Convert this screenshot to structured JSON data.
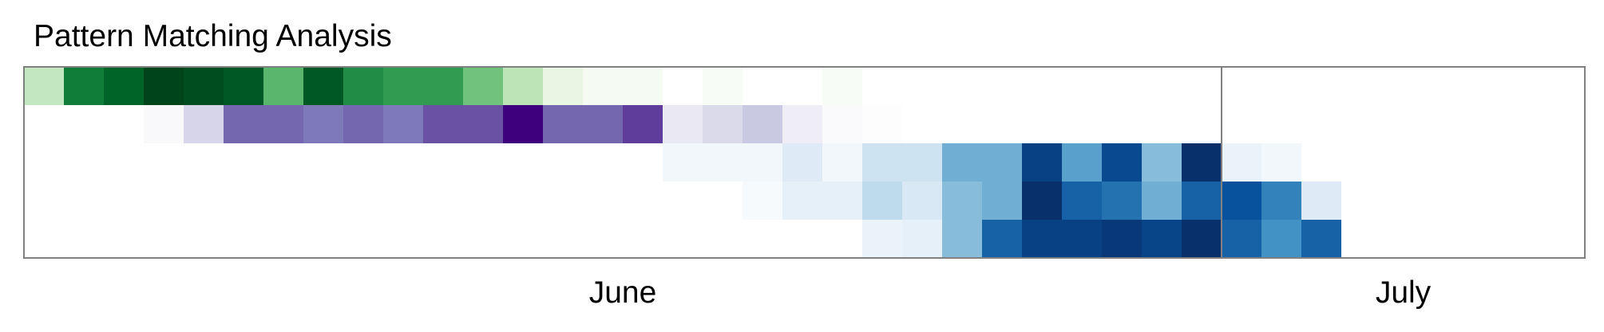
{
  "chart_data": {
    "type": "heatmap",
    "title": "Pattern Matching Analysis",
    "x": {
      "start_date": "2024-06-01",
      "days": 39
    },
    "month_labels": [
      {
        "text": "June",
        "month": "2024-06"
      },
      {
        "text": "July",
        "month": "2024-07"
      }
    ],
    "series": [
      {
        "colormap": "green",
        "values": [
          0.3,
          0.75,
          0.85,
          1.0,
          0.95,
          0.9,
          0.55,
          0.9,
          0.7,
          0.65,
          0.65,
          0.5,
          0.32,
          0.18,
          0.08,
          0.08,
          0.0,
          0.06,
          0.0,
          0.0,
          0.06,
          0.0,
          0.0,
          0.0,
          0.0,
          0.0,
          0.0,
          0.0,
          0.0,
          0.0,
          0.0,
          0.0,
          0.0,
          0.0,
          0.0,
          0.0,
          0.0,
          0.0,
          0.0
        ]
      },
      {
        "colormap": "purple",
        "values": [
          0.0,
          0.0,
          0.0,
          0.08,
          0.3,
          0.7,
          0.7,
          0.62,
          0.7,
          0.62,
          0.8,
          0.8,
          1.0,
          0.7,
          0.7,
          0.85,
          0.22,
          0.28,
          0.35,
          0.2,
          0.06,
          0.02,
          0.0,
          0.0,
          0.0,
          0.0,
          0.0,
          0.0,
          0.0,
          0.0,
          0.0,
          0.0,
          0.0,
          0.0,
          0.0,
          0.0,
          0.0,
          0.0,
          0.0
        ]
      },
      {
        "colormap": "blue",
        "values": [
          0.0,
          0.0,
          0.0,
          0.0,
          0.0,
          0.0,
          0.0,
          0.0,
          0.0,
          0.0,
          0.0,
          0.0,
          0.0,
          0.0,
          0.0,
          0.0,
          0.08,
          0.08,
          0.08,
          0.2,
          0.08,
          0.25,
          0.25,
          0.5,
          0.5,
          0.9,
          0.55,
          0.85,
          0.45,
          1.0,
          0.12,
          0.08,
          0.0,
          0.0,
          0.0,
          0.0,
          0.0,
          0.0,
          0.0
        ]
      },
      {
        "colormap": "blue",
        "values": [
          0.0,
          0.0,
          0.0,
          0.0,
          0.0,
          0.0,
          0.0,
          0.0,
          0.0,
          0.0,
          0.0,
          0.0,
          0.0,
          0.0,
          0.0,
          0.0,
          0.0,
          0.0,
          0.05,
          0.15,
          0.15,
          0.3,
          0.22,
          0.45,
          0.5,
          1.0,
          0.75,
          0.7,
          0.5,
          0.75,
          0.8,
          0.65,
          0.2,
          0.0,
          0.0,
          0.0,
          0.0,
          0.0,
          0.0
        ]
      },
      {
        "colormap": "blue",
        "values": [
          0.0,
          0.0,
          0.0,
          0.0,
          0.0,
          0.0,
          0.0,
          0.0,
          0.0,
          0.0,
          0.0,
          0.0,
          0.0,
          0.0,
          0.0,
          0.0,
          0.0,
          0.0,
          0.0,
          0.0,
          0.0,
          0.12,
          0.15,
          0.45,
          0.75,
          0.9,
          0.9,
          0.95,
          0.88,
          1.0,
          0.75,
          0.6,
          0.75,
          0.0,
          0.0,
          0.0,
          0.0,
          0.0,
          0.0
        ]
      }
    ],
    "colormaps": {
      "green": [
        "#ffffff",
        "#e5f5e0",
        "#a1d99b",
        "#41ab5d",
        "#006d2c",
        "#00441b"
      ],
      "purple": [
        "#ffffff",
        "#efedf5",
        "#bcbddc",
        "#807dba",
        "#6a51a3",
        "#3f007d"
      ],
      "blue": [
        "#ffffff",
        "#deebf7",
        "#9ecae1",
        "#4292c6",
        "#08519c",
        "#08306b"
      ]
    },
    "frame_color": "#808080",
    "grid": false,
    "legend": "none"
  }
}
